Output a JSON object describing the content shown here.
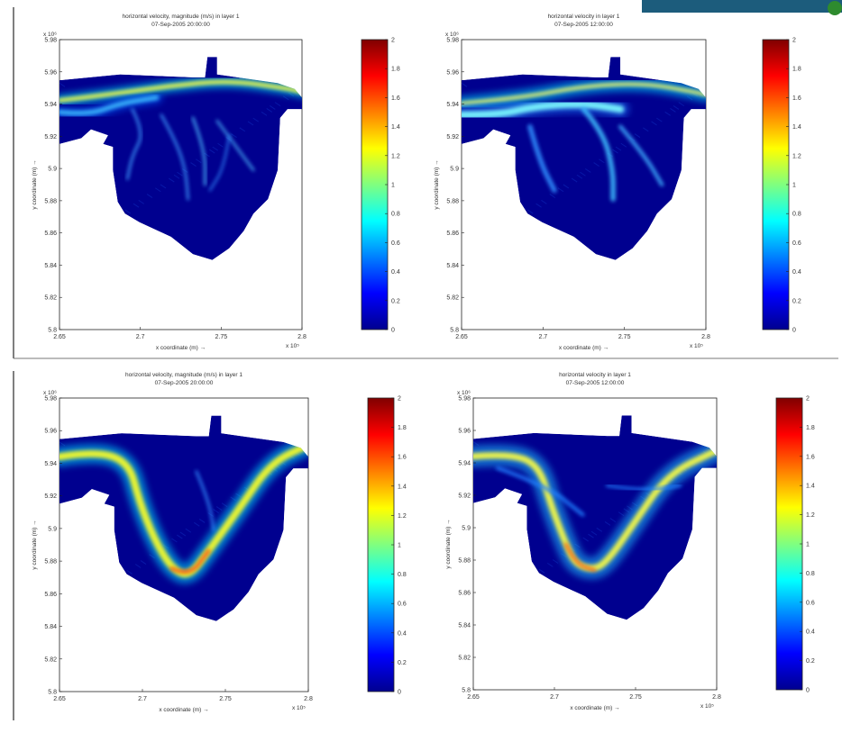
{
  "chart_data": [
    {
      "type": "heatmap",
      "title": "horizontal velocity, magnitude (m/s) in layer 1",
      "subtitle": "07-Sep-2005 20:00:00",
      "xlabel": "x coordinate (m) →",
      "ylabel": "y coordinate (m) →",
      "x_exponent": "x 10⁵",
      "y_exponent": "x 10⁶",
      "x_ticks": [
        "2.65",
        "2.7",
        "2.75",
        "2.8"
      ],
      "y_ticks": [
        "5.98",
        "5.96",
        "5.94",
        "5.92",
        "5.9",
        "5.88",
        "5.86",
        "5.84",
        "5.82",
        "5.8"
      ],
      "xlim": [
        2.65,
        2.8
      ],
      "ylim": [
        5.8,
        5.98
      ],
      "colorbar": {
        "min": 0,
        "max": 2,
        "ticks": [
          "2",
          "1.8",
          "1.6",
          "1.4",
          "1.2",
          "1",
          "0.8",
          "0.6",
          "0.4",
          "0.2",
          "0"
        ]
      },
      "colormap": "jet",
      "flow_pattern": "flood"
    },
    {
      "type": "heatmap",
      "title": "horizontal velocity in layer 1",
      "subtitle": "07-Sep-2005 12:00:00",
      "xlabel": "x coordinate (m) →",
      "ylabel": "y coordinate (m) →",
      "x_exponent": "x 10⁵",
      "y_exponent": "x 10⁶",
      "x_ticks": [
        "2.65",
        "2.7",
        "2.75",
        "2.8"
      ],
      "y_ticks": [
        "5.98",
        "5.96",
        "5.94",
        "5.92",
        "5.9",
        "5.88",
        "5.86",
        "5.84",
        "5.82",
        "5.8"
      ],
      "xlim": [
        2.65,
        2.8
      ],
      "ylim": [
        5.8,
        5.98
      ],
      "colorbar": {
        "min": 0,
        "max": 2,
        "ticks": [
          "2",
          "1.8",
          "1.6",
          "1.4",
          "1.2",
          "1",
          "0.8",
          "0.6",
          "0.4",
          "0.2",
          "0"
        ]
      },
      "colormap": "jet",
      "flow_pattern": "ebb"
    },
    {
      "type": "heatmap",
      "title": "horizontal velocity, magnitude (m/s) in layer 1",
      "subtitle": "07-Sep-2005 20:00:00",
      "xlabel": "x coordinate (m) →",
      "ylabel": "y coordinate (m) →",
      "x_exponent": "x 10⁵",
      "y_exponent": "x 10⁶",
      "x_ticks": [
        "2.65",
        "2.7",
        "2.75",
        "2.8"
      ],
      "y_ticks": [
        "5.98",
        "5.96",
        "5.94",
        "5.92",
        "5.9",
        "5.88",
        "5.86",
        "5.84",
        "5.82",
        "5.8"
      ],
      "xlim": [
        2.65,
        2.8
      ],
      "ylim": [
        5.8,
        5.98
      ],
      "colorbar": {
        "min": 0,
        "max": 2,
        "ticks": [
          "2",
          "1.8",
          "1.6",
          "1.4",
          "1.2",
          "1",
          "0.8",
          "0.6",
          "0.4",
          "0.2",
          "0"
        ]
      },
      "colormap": "jet",
      "flow_pattern": "channel-v"
    },
    {
      "type": "heatmap",
      "title": "horizontal velocity in layer 1",
      "subtitle": "07-Sep-2005 12:00:00",
      "xlabel": "x coordinate (m) →",
      "ylabel": "y coordinate (m) →",
      "x_exponent": "x 10⁵",
      "y_exponent": "x 10⁶",
      "x_ticks": [
        "2.65",
        "2.7",
        "2.75",
        "2.8"
      ],
      "y_ticks": [
        "5.98",
        "5.96",
        "5.94",
        "5.92",
        "5.9",
        "5.88",
        "5.86",
        "5.84",
        "5.82",
        "5.8"
      ],
      "xlim": [
        2.65,
        2.8
      ],
      "ylim": [
        5.8,
        5.98
      ],
      "colorbar": {
        "min": 0,
        "max": 2,
        "ticks": [
          "2",
          "1.8",
          "1.6",
          "1.4",
          "1.2",
          "1",
          "0.8",
          "0.6",
          "0.4",
          "0.2",
          "0"
        ]
      },
      "colormap": "jet",
      "flow_pattern": "channel-v-wide"
    }
  ],
  "colors": {
    "domain_background": "#00008f",
    "jet_stops": [
      "#00008f",
      "#0000ff",
      "#00ffff",
      "#ffff00",
      "#ff0000",
      "#800000"
    ]
  }
}
